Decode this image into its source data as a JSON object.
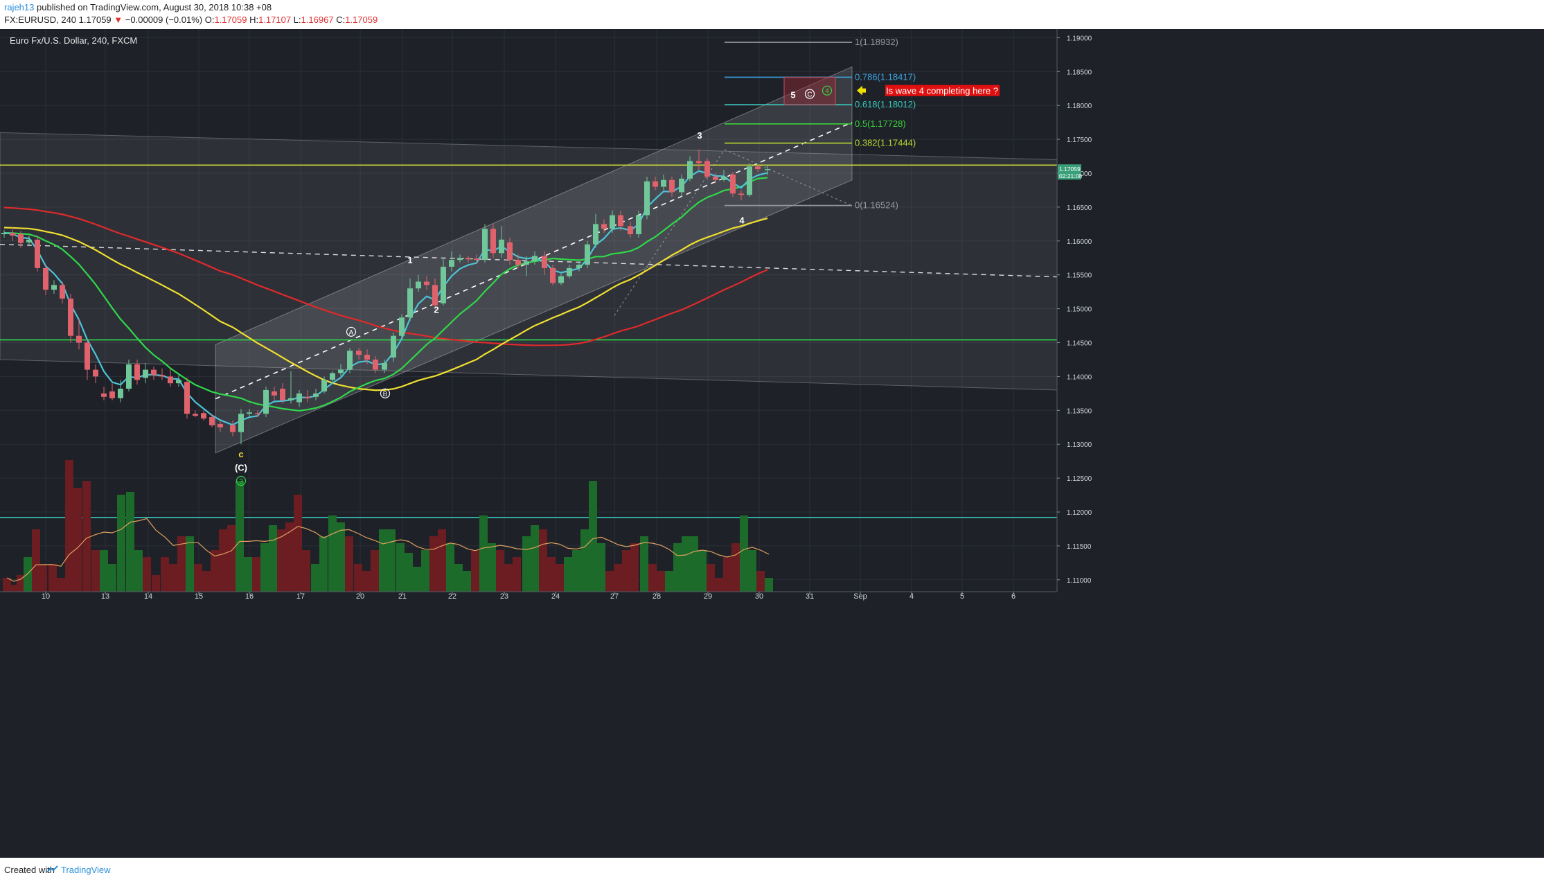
{
  "header": {
    "author": "rajeh13",
    "published": "published on TradingView.com, August 30, 2018 10:38 +08",
    "symbol": "FX:EURUSD, 240",
    "last": "1.17059",
    "change": "−0.00009 (−0.01%)",
    "o_label": "O:",
    "o": "1.17059",
    "h_label": "H:",
    "h": "1.17107",
    "l_label": "L:",
    "l": "1.16967",
    "c_label": "C:",
    "c": "1.17059"
  },
  "chart_title": "Euro Fx/U.S. Dollar, 240, FXCM",
  "footer": {
    "created_with": "Created with",
    "brand": "TradingView"
  },
  "colors": {
    "background": "#1e2128",
    "up": "#6fc79a",
    "down": "#e0626c",
    "sma_red": "#e02a2a",
    "sma_yellow": "#f0e030",
    "sma_green": "#2fd84a",
    "ema_cyan": "#4cc4d8",
    "fib_1": "#9a9a9a",
    "fib_0786": "#3ba3e0",
    "fib_0618": "#36c6b8",
    "fib_05": "#3ad43a",
    "fib_0382": "#b8d830",
    "fib_0": "#9a9a9a",
    "callout": "#e01010",
    "arrow": "#f0e000"
  },
  "price_label": {
    "value": "1.17059",
    "countdown": "02:21:08"
  },
  "callout_text": "Is wave 4 completing here ?",
  "chart_data": {
    "type": "candlestick",
    "title": "Euro Fx/U.S. Dollar, 240, FXCM",
    "y_ticks": [
      "1.19000",
      "1.18500",
      "1.18000",
      "1.17500",
      "1.17000",
      "1.16500",
      "1.16000",
      "1.15500",
      "1.15000",
      "1.14500",
      "1.14000",
      "1.13500",
      "1.13000",
      "1.12500",
      "1.12000",
      "1.11500",
      "1.11000"
    ],
    "x_ticks": [
      "10",
      "13",
      "14",
      "15",
      "16",
      "17",
      "20",
      "21",
      "22",
      "23",
      "24",
      "27",
      "28",
      "29",
      "30",
      "31",
      "Sep",
      "4",
      "5",
      "6"
    ],
    "fib_levels": [
      {
        "label": "1(1.18932)",
        "value": 1.18932,
        "color_key": "fib_1"
      },
      {
        "label": "0.786(1.18417)",
        "value": 1.18417,
        "color_key": "fib_0786"
      },
      {
        "label": "0.618(1.18012)",
        "value": 1.18012,
        "color_key": "fib_0618"
      },
      {
        "label": "0.5(1.17728)",
        "value": 1.17728,
        "color_key": "fib_05"
      },
      {
        "label": "0.382(1.17444)",
        "value": 1.17444,
        "color_key": "fib_0382"
      },
      {
        "label": "0(1.16524)",
        "value": 1.16524,
        "color_key": "fib_0"
      }
    ],
    "horizontal_lines": [
      {
        "value": 1.1712,
        "color": "#c8d838"
      },
      {
        "value": 1.1454,
        "color": "#2fd84a"
      },
      {
        "value": 1.1192,
        "color": "#36c6b8"
      }
    ],
    "wave_labels": [
      {
        "text": "1",
        "x": 592,
        "y": 1.1571,
        "color": "#ffffff"
      },
      {
        "text": "2",
        "x": 630,
        "y": 1.1498,
        "color": "#ffffff"
      },
      {
        "text": "3",
        "x": 1010,
        "y": 1.1755,
        "color": "#ffffff"
      },
      {
        "text": "4",
        "x": 1071,
        "y": 1.163,
        "color": "#ffffff"
      },
      {
        "text": "5",
        "x": 1145,
        "y": 1.1815,
        "color": "#ffffff"
      },
      {
        "text": "c",
        "x": 348,
        "y": 1.1285,
        "color": "#f0e030"
      },
      {
        "text": "(C)",
        "x": 348,
        "y": 1.1265,
        "color": "#ffffff"
      }
    ],
    "circled_labels": [
      {
        "text": "A",
        "x": 507,
        "y": 1.1466,
        "color": "#ffffff"
      },
      {
        "text": "B",
        "x": 556,
        "y": 1.1375,
        "color": "#ffffff"
      },
      {
        "text": "3",
        "x": 348,
        "y": 1.1246,
        "color": "#2fd84a"
      },
      {
        "text": "C",
        "x": 1169,
        "y": 1.1817,
        "color": "#ffffff"
      },
      {
        "text": "4",
        "x": 1194,
        "y": 1.1822,
        "color": "#2fd84a"
      }
    ],
    "candles": [
      [
        6,
        1.161,
        1.1612,
        1.1616,
        1.1605
      ],
      [
        18,
        1.1612,
        1.1608,
        1.162,
        1.16
      ],
      [
        30,
        1.161,
        1.1597,
        1.1615,
        1.159
      ],
      [
        42,
        1.1598,
        1.1602,
        1.1608,
        1.1592
      ],
      [
        54,
        1.1602,
        1.156,
        1.1608,
        1.1555
      ],
      [
        66,
        1.156,
        1.1528,
        1.1565,
        1.152
      ],
      [
        78,
        1.1528,
        1.1535,
        1.1542,
        1.1522
      ],
      [
        90,
        1.1535,
        1.1515,
        1.154,
        1.1508
      ],
      [
        102,
        1.1515,
        1.146,
        1.1522,
        1.145
      ],
      [
        114,
        1.146,
        1.145,
        1.1485,
        1.144
      ],
      [
        126,
        1.145,
        1.141,
        1.1455,
        1.1395
      ],
      [
        138,
        1.141,
        1.14,
        1.1418,
        1.139
      ],
      [
        150,
        1.1375,
        1.137,
        1.1385,
        1.1365
      ],
      [
        162,
        1.1378,
        1.1368,
        1.139,
        1.1365
      ],
      [
        174,
        1.1368,
        1.1382,
        1.1395,
        1.1362
      ],
      [
        186,
        1.1382,
        1.1418,
        1.1425,
        1.1378
      ],
      [
        198,
        1.1418,
        1.1395,
        1.1425,
        1.1388
      ],
      [
        210,
        1.1398,
        1.141,
        1.142,
        1.139
      ],
      [
        222,
        1.141,
        1.1402,
        1.1415,
        1.1395
      ],
      [
        234,
        1.1402,
        1.14,
        1.1412,
        1.1395
      ],
      [
        246,
        1.14,
        1.139,
        1.1412,
        1.1385
      ],
      [
        258,
        1.139,
        1.1395,
        1.1402,
        1.1385
      ],
      [
        270,
        1.1392,
        1.1345,
        1.1398,
        1.1338
      ],
      [
        282,
        1.1345,
        1.1342,
        1.135,
        1.134
      ],
      [
        294,
        1.1346,
        1.1338,
        1.135,
        1.1335
      ],
      [
        306,
        1.134,
        1.1328,
        1.1345,
        1.1325
      ],
      [
        318,
        1.133,
        1.1325,
        1.1335,
        1.1318
      ],
      [
        336,
        1.1328,
        1.1318,
        1.1335,
        1.1312
      ],
      [
        348,
        1.1318,
        1.1345,
        1.1352,
        1.13
      ],
      [
        360,
        1.1345,
        1.1347,
        1.1352,
        1.134
      ],
      [
        372,
        1.1346,
        1.1345,
        1.135,
        1.134
      ],
      [
        384,
        1.1345,
        1.138,
        1.1385,
        1.134
      ],
      [
        396,
        1.1378,
        1.1372,
        1.1385,
        1.1365
      ],
      [
        408,
        1.1382,
        1.1365,
        1.139,
        1.136
      ],
      [
        420,
        1.1365,
        1.1368,
        1.1408,
        1.136
      ],
      [
        432,
        1.1362,
        1.1375,
        1.138,
        1.1355
      ],
      [
        444,
        1.137,
        1.1368,
        1.138,
        1.1362
      ],
      [
        456,
        1.137,
        1.1375,
        1.1382,
        1.1365
      ],
      [
        468,
        1.1378,
        1.1395,
        1.14,
        1.1375
      ],
      [
        480,
        1.1395,
        1.1405,
        1.1408,
        1.139
      ],
      [
        492,
        1.1405,
        1.141,
        1.1418,
        1.14
      ],
      [
        505,
        1.141,
        1.1438,
        1.1442,
        1.1405
      ],
      [
        518,
        1.1438,
        1.1432,
        1.1442,
        1.1425
      ],
      [
        530,
        1.1432,
        1.1425,
        1.144,
        1.1418
      ],
      [
        542,
        1.1425,
        1.141,
        1.143,
        1.1405
      ],
      [
        555,
        1.141,
        1.142,
        1.1425,
        1.1405
      ],
      [
        568,
        1.1428,
        1.146,
        1.1465,
        1.1422
      ],
      [
        580,
        1.146,
        1.1487,
        1.1492,
        1.1455
      ],
      [
        592,
        1.1487,
        1.153,
        1.1545,
        1.1482
      ],
      [
        604,
        1.153,
        1.154,
        1.155,
        1.1525
      ],
      [
        616,
        1.154,
        1.1535,
        1.1548,
        1.1528
      ],
      [
        628,
        1.1535,
        1.1505,
        1.1545,
        1.15
      ],
      [
        640,
        1.1508,
        1.1562,
        1.1575,
        1.1505
      ],
      [
        652,
        1.1562,
        1.1572,
        1.1585,
        1.1555
      ],
      [
        664,
        1.1572,
        1.1575,
        1.158,
        1.1568
      ],
      [
        676,
        1.1575,
        1.1573,
        1.1578,
        1.1568
      ],
      [
        688,
        1.1574,
        1.1572,
        1.158,
        1.1566
      ],
      [
        700,
        1.1572,
        1.1618,
        1.1625,
        1.1568
      ],
      [
        712,
        1.1618,
        1.1582,
        1.1625,
        1.1575
      ],
      [
        724,
        1.1582,
        1.1602,
        1.1622,
        1.1575
      ],
      [
        736,
        1.1598,
        1.1572,
        1.1605,
        1.1565
      ],
      [
        748,
        1.1572,
        1.1565,
        1.158,
        1.156
      ],
      [
        760,
        1.1565,
        1.157,
        1.1578,
        1.1548
      ],
      [
        772,
        1.157,
        1.1578,
        1.1585,
        1.1565
      ],
      [
        786,
        1.1578,
        1.156,
        1.1585,
        1.155
      ],
      [
        798,
        1.156,
        1.1538,
        1.1565,
        1.1535
      ],
      [
        810,
        1.1538,
        1.1548,
        1.1552,
        1.1535
      ],
      [
        822,
        1.1548,
        1.156,
        1.1565,
        1.1545
      ],
      [
        836,
        1.156,
        1.1565,
        1.157,
        1.1555
      ],
      [
        848,
        1.1565,
        1.1595,
        1.16,
        1.156
      ],
      [
        860,
        1.1595,
        1.1625,
        1.164,
        1.159
      ],
      [
        872,
        1.1625,
        1.1618,
        1.1632,
        1.1612
      ],
      [
        884,
        1.1618,
        1.1638,
        1.1645,
        1.1612
      ],
      [
        896,
        1.1638,
        1.1622,
        1.1645,
        1.1615
      ],
      [
        910,
        1.1622,
        1.161,
        1.1628,
        1.1605
      ],
      [
        922,
        1.161,
        1.1638,
        1.1645,
        1.1605
      ],
      [
        934,
        1.1638,
        1.1688,
        1.1695,
        1.1632
      ],
      [
        946,
        1.1688,
        1.168,
        1.1695,
        1.1675
      ],
      [
        958,
        1.168,
        1.169,
        1.1698,
        1.1675
      ],
      [
        970,
        1.169,
        1.1672,
        1.1695,
        1.1665
      ],
      [
        984,
        1.1672,
        1.1692,
        1.1698,
        1.1665
      ],
      [
        996,
        1.1692,
        1.1718,
        1.1725,
        1.1688
      ],
      [
        1009,
        1.1718,
        1.1715,
        1.1735,
        1.1705
      ],
      [
        1021,
        1.1718,
        1.1695,
        1.1722,
        1.169
      ],
      [
        1033,
        1.1695,
        1.169,
        1.17,
        1.1685
      ],
      [
        1045,
        1.169,
        1.1695,
        1.1705,
        1.1688
      ],
      [
        1058,
        1.1698,
        1.167,
        1.1702,
        1.1665
      ],
      [
        1070,
        1.167,
        1.1668,
        1.1675,
        1.166
      ],
      [
        1082,
        1.1668,
        1.171,
        1.1715,
        1.1665
      ],
      [
        1094,
        1.171,
        1.1706,
        1.1712,
        1.1702
      ],
      [
        1108,
        1.1706,
        1.1706,
        1.1711,
        1.1697
      ]
    ],
    "volume": [
      [
        10,
        0.1,
        0
      ],
      [
        20,
        0.05,
        0
      ],
      [
        30,
        0.12,
        0
      ],
      [
        40,
        0.25,
        1
      ],
      [
        52,
        0.45,
        0
      ],
      [
        62,
        0.2,
        0
      ],
      [
        76,
        0.2,
        0
      ],
      [
        88,
        0.1,
        0
      ],
      [
        100,
        0.95,
        0
      ],
      [
        112,
        0.75,
        0
      ],
      [
        125,
        0.8,
        0
      ],
      [
        138,
        0.3,
        0
      ],
      [
        150,
        0.3,
        1
      ],
      [
        162,
        0.2,
        1
      ],
      [
        175,
        0.7,
        1
      ],
      [
        188,
        0.72,
        1
      ],
      [
        200,
        0.3,
        1
      ],
      [
        212,
        0.25,
        0
      ],
      [
        225,
        0.12,
        0
      ],
      [
        238,
        0.25,
        0
      ],
      [
        250,
        0.2,
        0
      ],
      [
        262,
        0.4,
        0
      ],
      [
        274,
        0.4,
        1
      ],
      [
        286,
        0.2,
        0
      ],
      [
        298,
        0.15,
        0
      ],
      [
        310,
        0.3,
        0
      ],
      [
        322,
        0.45,
        0
      ],
      [
        334,
        0.48,
        0
      ],
      [
        346,
        0.8,
        1
      ],
      [
        358,
        0.25,
        1
      ],
      [
        370,
        0.25,
        0
      ],
      [
        382,
        0.35,
        1
      ],
      [
        394,
        0.48,
        1
      ],
      [
        406,
        0.45,
        0
      ],
      [
        418,
        0.5,
        0
      ],
      [
        430,
        0.7,
        0
      ],
      [
        442,
        0.3,
        0
      ],
      [
        455,
        0.2,
        1
      ],
      [
        467,
        0.4,
        1
      ],
      [
        480,
        0.55,
        1
      ],
      [
        492,
        0.5,
        1
      ],
      [
        504,
        0.4,
        0
      ],
      [
        517,
        0.2,
        0
      ],
      [
        529,
        0.15,
        0
      ],
      [
        541,
        0.3,
        0
      ],
      [
        553,
        0.45,
        1
      ],
      [
        565,
        0.45,
        1
      ],
      [
        578,
        0.35,
        1
      ],
      [
        590,
        0.28,
        1
      ],
      [
        602,
        0.18,
        1
      ],
      [
        614,
        0.3,
        1
      ],
      [
        626,
        0.4,
        0
      ],
      [
        638,
        0.45,
        0
      ],
      [
        650,
        0.35,
        1
      ],
      [
        662,
        0.2,
        1
      ],
      [
        674,
        0.15,
        1
      ],
      [
        686,
        0.3,
        0
      ],
      [
        698,
        0.55,
        1
      ],
      [
        710,
        0.35,
        1
      ],
      [
        722,
        0.3,
        0
      ],
      [
        734,
        0.2,
        0
      ],
      [
        746,
        0.25,
        0
      ],
      [
        760,
        0.4,
        1
      ],
      [
        772,
        0.48,
        1
      ],
      [
        784,
        0.45,
        0
      ],
      [
        796,
        0.25,
        0
      ],
      [
        808,
        0.2,
        0
      ],
      [
        820,
        0.25,
        1
      ],
      [
        832,
        0.3,
        1
      ],
      [
        844,
        0.45,
        1
      ],
      [
        856,
        0.8,
        1
      ],
      [
        868,
        0.35,
        1
      ],
      [
        880,
        0.15,
        0
      ],
      [
        892,
        0.2,
        0
      ],
      [
        904,
        0.3,
        0
      ],
      [
        916,
        0.35,
        0
      ],
      [
        930,
        0.4,
        1
      ],
      [
        942,
        0.2,
        0
      ],
      [
        954,
        0.15,
        0
      ],
      [
        966,
        0.15,
        1
      ],
      [
        978,
        0.35,
        1
      ],
      [
        990,
        0.4,
        1
      ],
      [
        1002,
        0.4,
        1
      ],
      [
        1014,
        0.3,
        1
      ],
      [
        1026,
        0.2,
        0
      ],
      [
        1038,
        0.1,
        0
      ],
      [
        1050,
        0.25,
        0
      ],
      [
        1062,
        0.35,
        0
      ],
      [
        1074,
        0.55,
        1
      ],
      [
        1086,
        0.3,
        1
      ],
      [
        1098,
        0.15,
        0
      ],
      [
        1110,
        0.1,
        1
      ]
    ]
  }
}
